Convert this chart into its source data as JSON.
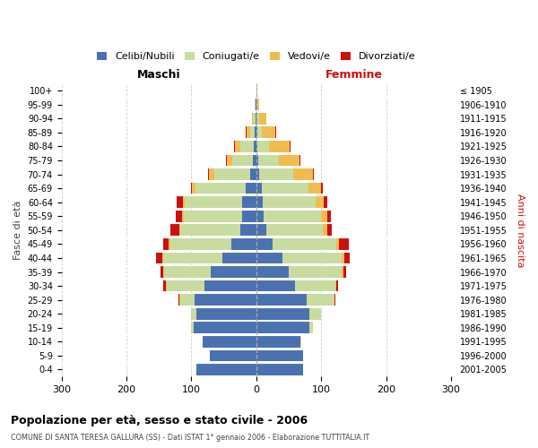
{
  "age_groups": [
    "100+",
    "95-99",
    "90-94",
    "85-89",
    "80-84",
    "75-79",
    "70-74",
    "65-69",
    "60-64",
    "55-59",
    "50-54",
    "45-49",
    "40-44",
    "35-39",
    "30-34",
    "25-29",
    "20-24",
    "15-19",
    "10-14",
    "5-9",
    "0-4"
  ],
  "birth_years": [
    "≤ 1905",
    "1906-1910",
    "1911-1915",
    "1916-1920",
    "1921-1925",
    "1926-1930",
    "1931-1935",
    "1936-1940",
    "1941-1945",
    "1946-1950",
    "1951-1955",
    "1956-1960",
    "1961-1965",
    "1966-1970",
    "1971-1975",
    "1976-1980",
    "1981-1985",
    "1986-1990",
    "1991-1995",
    "1996-2000",
    "2001-2005"
  ],
  "male_celibi": [
    0,
    1,
    1,
    2,
    4,
    5,
    9,
    16,
    22,
    22,
    25,
    38,
    52,
    70,
    80,
    95,
    92,
    97,
    82,
    72,
    92
  ],
  "male_coniugati": [
    0,
    1,
    4,
    8,
    20,
    32,
    55,
    78,
    88,
    90,
    92,
    95,
    92,
    72,
    58,
    22,
    8,
    3,
    1,
    0,
    0
  ],
  "male_vedovi": [
    0,
    1,
    2,
    5,
    9,
    9,
    9,
    5,
    3,
    3,
    2,
    2,
    1,
    1,
    1,
    1,
    0,
    0,
    0,
    0,
    0
  ],
  "male_divorziati": [
    0,
    0,
    0,
    1,
    1,
    1,
    1,
    1,
    9,
    9,
    14,
    9,
    9,
    5,
    4,
    2,
    1,
    0,
    0,
    0,
    0
  ],
  "female_celibi": [
    0,
    0,
    0,
    1,
    2,
    3,
    5,
    8,
    10,
    12,
    15,
    25,
    40,
    50,
    60,
    78,
    82,
    82,
    68,
    72,
    72
  ],
  "female_coniugati": [
    0,
    1,
    4,
    8,
    18,
    32,
    52,
    72,
    82,
    88,
    88,
    98,
    92,
    82,
    62,
    42,
    18,
    5,
    2,
    0,
    0
  ],
  "female_vedovi": [
    2,
    4,
    12,
    20,
    32,
    32,
    30,
    20,
    12,
    9,
    6,
    5,
    3,
    2,
    1,
    1,
    0,
    0,
    0,
    0,
    0
  ],
  "female_divorziati": [
    0,
    0,
    0,
    1,
    1,
    1,
    2,
    2,
    5,
    6,
    8,
    14,
    9,
    5,
    3,
    1,
    0,
    0,
    0,
    0,
    0
  ],
  "color_celibi": "#4a72b0",
  "color_coniugati": "#c8dca0",
  "color_vedovi": "#f0bc50",
  "color_divorziati": "#cc1010",
  "title_main": "Popolazione per età, sesso e stato civile - 2006",
  "title_sub": "COMUNE DI SANTA TERESA GALLURA (SS) - Dati ISTAT 1° gennaio 2006 - Elaborazione TUTTITALIA.IT",
  "label_maschi": "Maschi",
  "label_femmine": "Femmine",
  "ylabel_left": "Fasce di età",
  "ylabel_right": "Anni di nascita",
  "xlim": 300,
  "bg_color": "#ffffff",
  "grid_color": "#cccccc",
  "legend_labels": [
    "Celibi/Nubili",
    "Coniugati/e",
    "Vedovi/e",
    "Divorziati/e"
  ]
}
